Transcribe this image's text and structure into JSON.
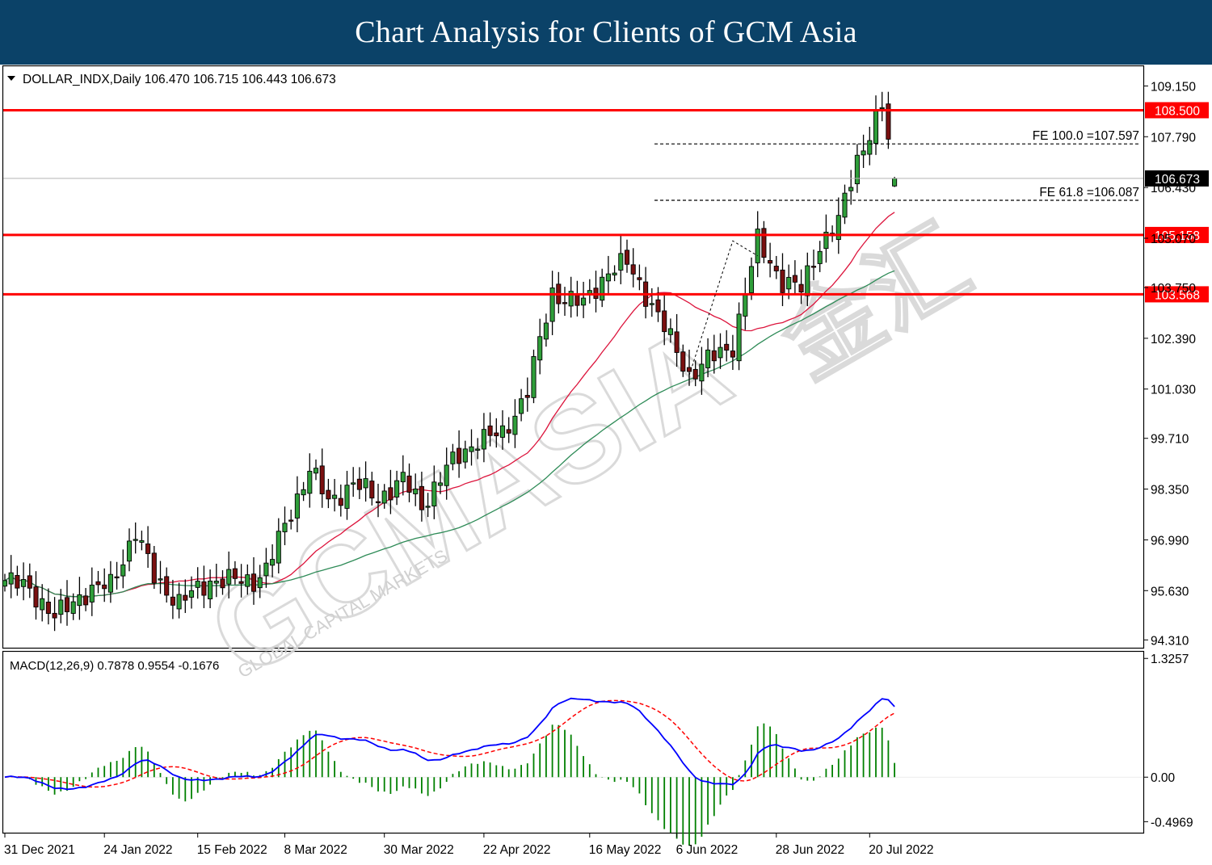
{
  "banner": {
    "title": "Chart Analysis for Clients of GCM Asia"
  },
  "chart_data": {
    "type": "candlestick",
    "header": "DOLLAR_INDX,Daily  106.470 106.715 106.443 106.673",
    "symbol": "DOLLAR_INDX",
    "timeframe": "Daily",
    "ohlc_last": {
      "open": 106.47,
      "high": 106.715,
      "low": 106.443,
      "close": 106.673
    },
    "price_axis": {
      "ylim": [
        94.1,
        109.7
      ],
      "ticks": [
        "109.150",
        "107.790",
        "106.430",
        "105.070",
        "103.750",
        "102.390",
        "101.030",
        "99.710",
        "98.350",
        "96.990",
        "95.630",
        "94.310"
      ]
    },
    "time_axis": {
      "labels": [
        "31 Dec 2021",
        "24 Jan 2022",
        "15 Feb 2022",
        "8 Mar 2022",
        "30 Mar 2022",
        "22 Apr 2022",
        "16 May 2022",
        "6 Jun 2022",
        "28 Jun 2022",
        "20 Jul 2022"
      ]
    },
    "horizontal_levels": [
      {
        "label": "108.500",
        "value": 108.5,
        "color": "#ff0000"
      },
      {
        "label": "105.158",
        "value": 105.158,
        "color": "#ff0000"
      },
      {
        "label": "103.568",
        "value": 103.568,
        "color": "#ff0000"
      }
    ],
    "current_price": {
      "label": "106.673",
      "value": 106.673
    },
    "fibonacci": [
      {
        "label": "FE 100.0 =107.597",
        "value": 107.597
      },
      {
        "label": "FE 61.8 =106.087",
        "value": 106.087
      }
    ],
    "moving_averages": [
      {
        "color": "#dc143c"
      },
      {
        "color": "#2e8b57"
      }
    ],
    "macd": {
      "label": "MACD(12,26,9) 0.7878 0.9554 -0.1676",
      "params": "12,26,9",
      "values": {
        "macd": 0.7878,
        "signal": 0.9554,
        "histogram": -0.1676
      },
      "ylim": [
        -0.62,
        1.4
      ],
      "ticks": [
        "1.3257",
        "0.00",
        "-0.4969"
      ],
      "macd_color": "#0000ff",
      "signal_color": "#ff0000",
      "hist_color": "#008000"
    },
    "watermark": {
      "main": "GCMASIA",
      "sub": "GLOBAL CAPITAL MARKETS",
      "cjk": "金汇"
    }
  }
}
